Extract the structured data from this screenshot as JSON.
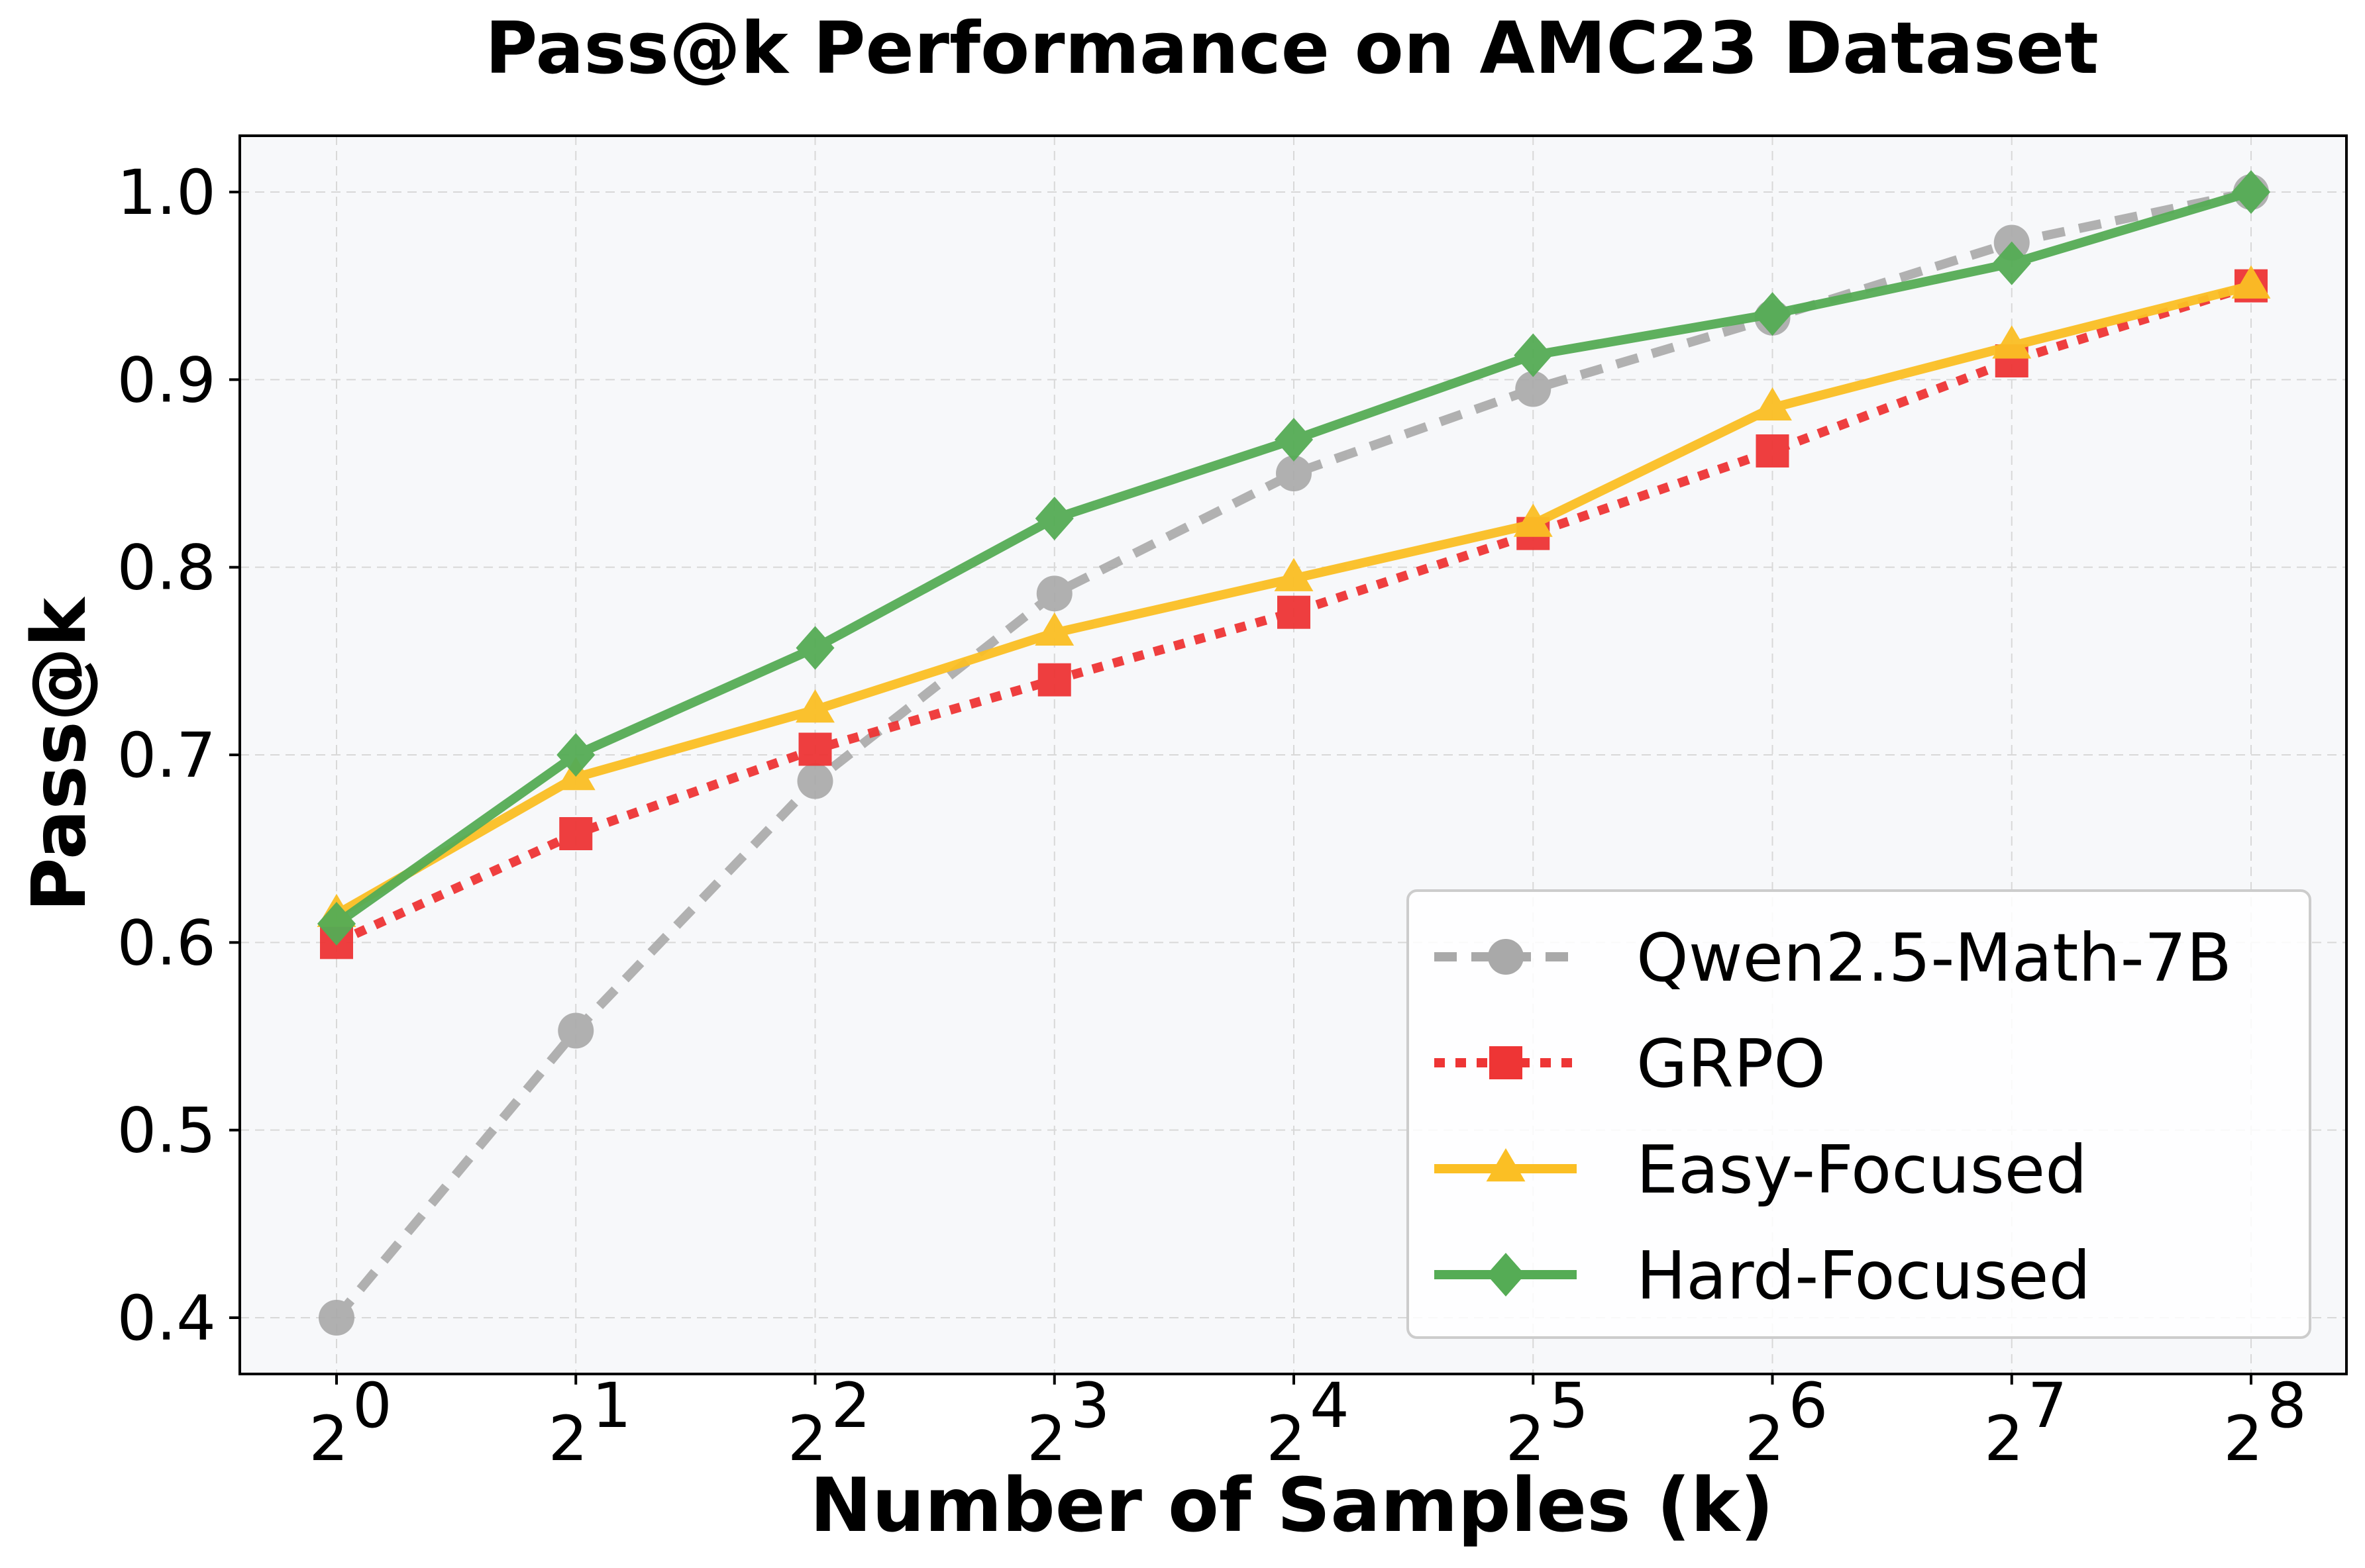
{
  "chart_data": {
    "type": "line",
    "title": "Pass@k Performance on AMC23 Dataset",
    "xlabel": "Number of Samples (k)",
    "ylabel": "Pass@k",
    "x": [
      1,
      2,
      4,
      8,
      16,
      32,
      64,
      128,
      256
    ],
    "x_scale": "log2",
    "x_tick_labels": [
      {
        "base": "2",
        "exp": "0"
      },
      {
        "base": "2",
        "exp": "1"
      },
      {
        "base": "2",
        "exp": "2"
      },
      {
        "base": "2",
        "exp": "3"
      },
      {
        "base": "2",
        "exp": "4"
      },
      {
        "base": "2",
        "exp": "5"
      },
      {
        "base": "2",
        "exp": "6"
      },
      {
        "base": "2",
        "exp": "7"
      },
      {
        "base": "2",
        "exp": "8"
      }
    ],
    "y_ticks": [
      0.4,
      0.5,
      0.6,
      0.7,
      0.8,
      0.9,
      1.0
    ],
    "y_tick_labels": [
      "0.4",
      "0.5",
      "0.6",
      "0.7",
      "0.8",
      "0.9",
      "1.0"
    ],
    "ylim": [
      0.37,
      1.03
    ],
    "grid": true,
    "legend_position": "lower-right",
    "plot_background": "#f7f8fa",
    "series": [
      {
        "name": "Qwen2.5-Math-7B",
        "color": "#a9a9a9",
        "line_style": "dashed",
        "marker": "circle",
        "values": [
          0.4,
          0.553,
          0.686,
          0.786,
          0.85,
          0.895,
          0.933,
          0.973,
          1.0
        ]
      },
      {
        "name": "GRPO",
        "color": "#ee3535",
        "line_style": "dotted",
        "marker": "square",
        "values": [
          0.6,
          0.658,
          0.703,
          0.74,
          0.776,
          0.818,
          0.862,
          0.91,
          0.95
        ]
      },
      {
        "name": "Easy-Focused",
        "color": "#fbbf24",
        "line_style": "solid",
        "marker": "triangle",
        "values": [
          0.615,
          0.688,
          0.724,
          0.765,
          0.794,
          0.823,
          0.885,
          0.918,
          0.95
        ]
      },
      {
        "name": "Hard-Focused",
        "color": "#55ac55",
        "line_style": "solid",
        "marker": "diamond",
        "values": [
          0.61,
          0.7,
          0.757,
          0.826,
          0.868,
          0.913,
          0.935,
          0.962,
          1.0
        ]
      }
    ]
  }
}
